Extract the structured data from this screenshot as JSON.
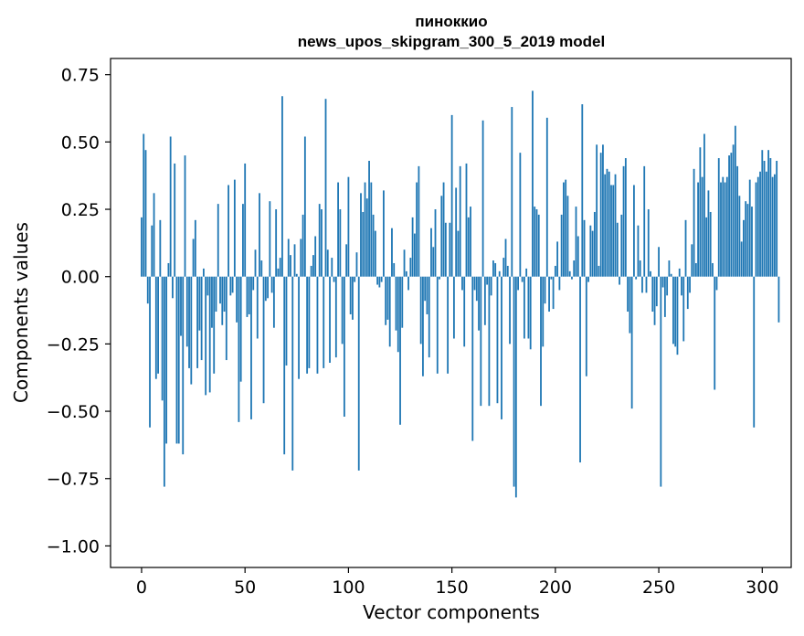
{
  "chart_data": {
    "type": "bar",
    "title": "пиноккио",
    "subtitle": "news_upos_skipgram_300_5_2019 model",
    "xlabel": "Vector components",
    "ylabel": "Components values",
    "xlim": [
      -15,
      314
    ],
    "ylim": [
      -1.08,
      0.81
    ],
    "xticks": [
      0,
      50,
      100,
      150,
      200,
      250,
      300
    ],
    "yticks": [
      -1.0,
      -0.75,
      -0.5,
      -0.25,
      0.0,
      0.25,
      0.5,
      0.75
    ],
    "ytick_labels": [
      "−1.00",
      "−0.75",
      "−0.50",
      "−0.25",
      "0.00",
      "0.25",
      "0.50",
      "0.75"
    ],
    "bar_color": "#1f77b4",
    "bar_width": 0.8,
    "values": [
      0.22,
      0.53,
      0.47,
      -0.1,
      -0.56,
      0.19,
      0.31,
      -0.38,
      -0.36,
      0.21,
      -0.46,
      -0.78,
      -0.62,
      0.05,
      0.52,
      -0.08,
      0.42,
      -0.62,
      -0.62,
      -0.22,
      -0.66,
      0.45,
      -0.26,
      -0.34,
      -0.4,
      0.14,
      0.21,
      -0.34,
      -0.2,
      -0.31,
      0.03,
      -0.44,
      -0.07,
      -0.43,
      -0.19,
      -0.36,
      -0.13,
      0.27,
      -0.1,
      -0.18,
      -0.13,
      -0.31,
      0.34,
      -0.07,
      -0.06,
      0.36,
      -0.17,
      -0.54,
      -0.39,
      0.27,
      0.42,
      -0.15,
      -0.14,
      -0.53,
      -0.05,
      0.1,
      -0.23,
      0.31,
      0.06,
      -0.47,
      -0.09,
      -0.08,
      0.28,
      -0.06,
      -0.19,
      0.25,
      0.03,
      0.07,
      0.67,
      -0.66,
      -0.33,
      0.14,
      0.08,
      -0.72,
      0.12,
      0.01,
      -0.38,
      0.14,
      0.23,
      0.52,
      -0.36,
      -0.34,
      0.04,
      0.08,
      0.15,
      -0.36,
      0.27,
      0.25,
      -0.34,
      0.66,
      0.1,
      -0.32,
      0.07,
      -0.02,
      -0.3,
      0.35,
      0.25,
      -0.25,
      -0.52,
      0.12,
      0.37,
      -0.14,
      -0.16,
      -0.02,
      0.09,
      -0.72,
      0.31,
      0.24,
      0.35,
      0.29,
      0.43,
      0.35,
      0.23,
      0.17,
      -0.03,
      -0.04,
      -0.02,
      0.32,
      -0.18,
      -0.16,
      -0.26,
      0.18,
      0.05,
      -0.2,
      -0.28,
      -0.55,
      -0.19,
      0.1,
      0.02,
      -0.05,
      0.07,
      0.22,
      0.16,
      0.35,
      0.41,
      -0.25,
      -0.37,
      -0.09,
      -0.14,
      -0.3,
      0.18,
      0.11,
      0.25,
      -0.36,
      -0.01,
      0.3,
      0.35,
      0.2,
      -0.36,
      0.2,
      0.6,
      -0.23,
      0.33,
      0.17,
      0.41,
      -0.05,
      -0.26,
      0.42,
      0.22,
      0.26,
      -0.61,
      -0.05,
      -0.09,
      -0.2,
      -0.48,
      0.58,
      -0.18,
      -0.03,
      -0.48,
      -0.07,
      0.06,
      0.05,
      -0.47,
      0.02,
      -0.53,
      0.07,
      0.14,
      0.04,
      -0.25,
      0.63,
      -0.78,
      -0.82,
      -0.05,
      0.46,
      -0.02,
      -0.23,
      0.03,
      -0.23,
      -0.27,
      0.69,
      0.26,
      0.25,
      0.23,
      -0.48,
      -0.26,
      -0.1,
      0.59,
      -0.13,
      -0.01,
      -0.12,
      0.04,
      0.13,
      -0.05,
      0.23,
      0.35,
      0.36,
      0.3,
      0.02,
      -0.01,
      0.06,
      0.26,
      0.15,
      -0.69,
      0.64,
      0.21,
      -0.37,
      -0.02,
      0.19,
      0.17,
      0.24,
      0.49,
      0.04,
      0.46,
      0.49,
      0.38,
      0.4,
      0.39,
      0.34,
      0.34,
      0.38,
      0.2,
      -0.03,
      0.23,
      0.41,
      0.44,
      -0.13,
      -0.21,
      -0.49,
      0.34,
      -0.01,
      0.19,
      0.06,
      -0.06,
      0.41,
      -0.06,
      0.25,
      0.02,
      -0.13,
      -0.18,
      -0.11,
      0.11,
      -0.78,
      -0.04,
      -0.15,
      -0.07,
      0.06,
      0.01,
      -0.25,
      -0.26,
      -0.29,
      0.03,
      -0.07,
      -0.24,
      0.21,
      -0.12,
      -0.06,
      0.12,
      0.4,
      0.05,
      0.35,
      0.48,
      0.37,
      0.53,
      0.22,
      0.32,
      0.24,
      0.05,
      -0.42,
      -0.05,
      0.44,
      0.35,
      0.37,
      0.35,
      0.37,
      0.45,
      0.46,
      0.49,
      0.56,
      0.41,
      0.3,
      0.13,
      0.21,
      0.28,
      0.27,
      0.36,
      0.26,
      -0.56,
      0.35,
      0.37,
      0.39,
      0.47,
      0.43,
      0.39,
      0.47,
      0.44,
      0.37,
      0.38,
      0.43,
      -0.17
    ]
  }
}
